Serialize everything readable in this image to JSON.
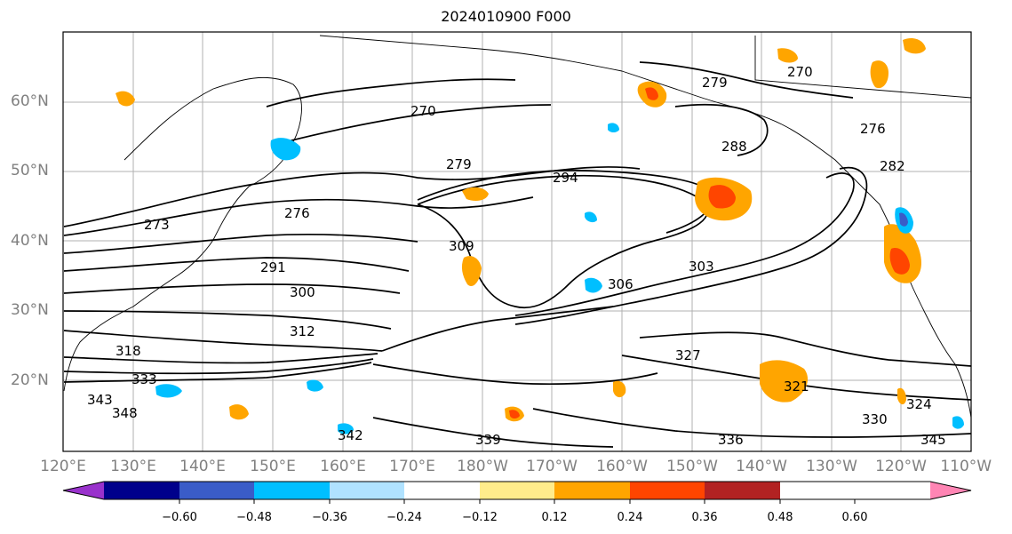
{
  "title": "2024010900 F000",
  "lat_labels": [
    "60°N",
    "50°N",
    "40°N",
    "30°N",
    "20°N"
  ],
  "lon_labels": [
    "120°E",
    "130°E",
    "140°E",
    "150°E",
    "160°E",
    "170°E",
    "180°W",
    "170°W",
    "160°W",
    "150°W",
    "140°W",
    "130°W",
    "120°W",
    "110°W"
  ],
  "colorbar": {
    "ticks": [
      "−0.60",
      "−0.48",
      "−0.36",
      "−0.24",
      "−0.12",
      "0.12",
      "0.24",
      "0.36",
      "0.48",
      "0.60"
    ],
    "colors": [
      "#9932cc",
      "#00008b",
      "#3a5cc8",
      "#00bfff",
      "#b0e2ff",
      "#ffffff",
      "#ffec8b",
      "#ffa500",
      "#ff4500",
      "#b22222",
      "#ff85b4"
    ]
  },
  "contour_labels": [
    "270",
    "276",
    "279",
    "288",
    "294",
    "291",
    "300",
    "312",
    "318",
    "333",
    "343",
    "348",
    "342",
    "339",
    "336",
    "330",
    "324",
    "321",
    "327",
    "306",
    "303",
    "309",
    "273",
    "282",
    "345",
    "276",
    "279",
    "270"
  ]
}
